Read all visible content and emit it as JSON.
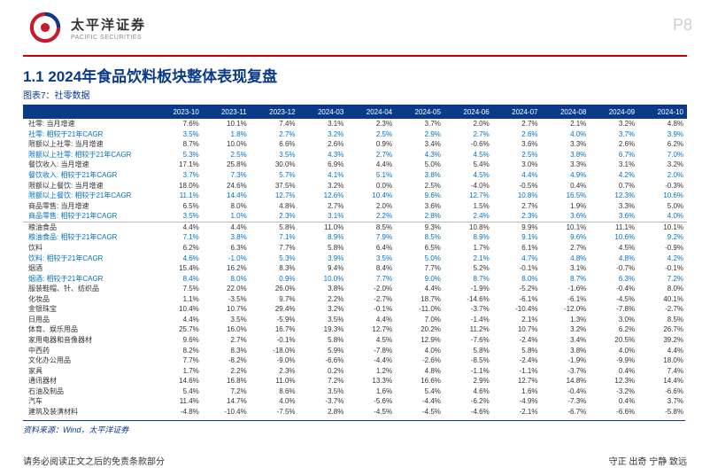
{
  "page_number": "P8",
  "brand": {
    "cn": "太平洋证券",
    "en": "PACIFIC SECURITIES"
  },
  "title": "1.1 2024年食品饮料板块整体表现复盘",
  "subtitle": "图表7：社零数据",
  "columns": [
    "",
    "2023-10",
    "2023-11",
    "2023-12",
    "2024-03",
    "2024-04",
    "2024-05",
    "2024-06",
    "2024-07",
    "2024-08",
    "2024-09",
    "2024-10"
  ],
  "sections": [
    {
      "rows": [
        {
          "label": "社零: 当月增速",
          "vals": [
            "7.6%",
            "10.1%",
            "7.4%",
            "3.1%",
            "2.3%",
            "3.7%",
            "2.0%",
            "2.7%",
            "2.1%",
            "3.2%",
            "4.8%"
          ],
          "blue": false
        },
        {
          "label": "社零: 相较于21年CAGR",
          "vals": [
            "3.5%",
            "1.8%",
            "2.7%",
            "3.2%",
            "2.5%",
            "2.9%",
            "2.7%",
            "2.6%",
            "4.0%",
            "3.7%",
            "3.9%"
          ],
          "blue": true
        },
        {
          "label": "限额以上社零: 当月增速",
          "vals": [
            "8.7%",
            "10.0%",
            "6.6%",
            "2.6%",
            "0.9%",
            "3.4%",
            "-0.6%",
            "3.6%",
            "3.3%",
            "2.6%",
            "6.2%"
          ],
          "blue": false
        },
        {
          "label": "限额以上社零: 相较于21年CAGR",
          "vals": [
            "5.3%",
            "2.5%",
            "3.5%",
            "4.3%",
            "2.7%",
            "4.3%",
            "4.5%",
            "2.5%",
            "3.8%",
            "6.7%",
            "7.0%"
          ],
          "blue": true
        },
        {
          "label": "餐饮收入: 当月增速",
          "vals": [
            "17.1%",
            "25.8%",
            "30.0%",
            "6.9%",
            "4.4%",
            "5.0%",
            "5.4%",
            "3.0%",
            "3.3%",
            "3.1%",
            "3.2%"
          ],
          "blue": false
        },
        {
          "label": "餐饮收入: 相较于21年CAGR",
          "vals": [
            "3.7%",
            "7.3%",
            "5.7%",
            "4.1%",
            "5.1%",
            "3.8%",
            "4.5%",
            "4.4%",
            "4.9%",
            "4.2%",
            "2.0%"
          ],
          "blue": true
        },
        {
          "label": "限额以上餐饮: 当月增速",
          "vals": [
            "18.0%",
            "24.6%",
            "37.5%",
            "3.2%",
            "0.0%",
            "2.5%",
            "-4.0%",
            "-0.5%",
            "0.4%",
            "0.7%",
            "-0.3%"
          ],
          "blue": false
        },
        {
          "label": "限额以上餐饮: 相较于21年CAGR",
          "vals": [
            "11.1%",
            "14.4%",
            "12.7%",
            "12.6%",
            "10.4%",
            "9.6%",
            "12.7%",
            "10.8%",
            "16.5%",
            "12.3%",
            "10.6%"
          ],
          "blue": true
        },
        {
          "label": "商品零售: 当月增速",
          "vals": [
            "6.5%",
            "8.0%",
            "4.8%",
            "2.7%",
            "2.0%",
            "3.6%",
            "1.5%",
            "2.7%",
            "1.9%",
            "3.3%",
            "5.0%"
          ],
          "blue": false
        },
        {
          "label": "商品零售: 相较于21年CAGR",
          "vals": [
            "3.5%",
            "1.0%",
            "2.3%",
            "3.1%",
            "2.2%",
            "2.8%",
            "2.4%",
            "2.3%",
            "3.6%",
            "3.6%",
            "4.0%"
          ],
          "blue": true
        }
      ]
    },
    {
      "rows": [
        {
          "label": "粮油食品",
          "vals": [
            "4.4%",
            "4.4%",
            "5.8%",
            "11.0%",
            "8.5%",
            "9.3%",
            "10.8%",
            "9.9%",
            "10.1%",
            "11.1%",
            "10.1%"
          ],
          "blue": false
        },
        {
          "label": "粮油食品: 相较于21年CAGR",
          "vals": [
            "7.1%",
            "3.8%",
            "7.1%",
            "8.9%",
            "7.9%",
            "8.5%",
            "8.9%",
            "9.1%",
            "9.6%",
            "10.6%",
            "9.2%"
          ],
          "blue": true
        },
        {
          "label": "饮料",
          "vals": [
            "6.2%",
            "6.3%",
            "7.7%",
            "5.8%",
            "6.4%",
            "6.5%",
            "1.7%",
            "6.1%",
            "2.7%",
            "4.5%",
            "-0.9%"
          ],
          "blue": false
        },
        {
          "label": "饮料: 相较于21年CAGR",
          "vals": [
            "4.6%",
            "-1.0%",
            "5.3%",
            "3.9%",
            "3.5%",
            "5.0%",
            "2.1%",
            "4.7%",
            "4.8%",
            "4.8%",
            "4.2%"
          ],
          "blue": true
        },
        {
          "label": "烟酒",
          "vals": [
            "15.4%",
            "16.2%",
            "8.3%",
            "9.4%",
            "8.4%",
            "7.7%",
            "5.2%",
            "-0.1%",
            "3.1%",
            "-0.7%",
            "-0.1%"
          ],
          "blue": false
        },
        {
          "label": "烟酒: 相较于21年CAGR",
          "vals": [
            "8.4%",
            "8.0%",
            "0.9%",
            "10.0%",
            "7.7%",
            "9.0%",
            "8.7%",
            "8.0%",
            "8.7%",
            "6.3%",
            "7.2%"
          ],
          "blue": true
        },
        {
          "label": "服装鞋帽、针、纺织品",
          "vals": [
            "7.5%",
            "22.0%",
            "26.0%",
            "3.8%",
            "-2.0%",
            "4.4%",
            "-1.9%",
            "-5.2%",
            "-1.6%",
            "-0.4%",
            "8.0%"
          ],
          "blue": false
        },
        {
          "label": "化妆品",
          "vals": [
            "1.1%",
            "-3.5%",
            "9.7%",
            "2.2%",
            "-2.7%",
            "18.7%",
            "-14.6%",
            "-6.1%",
            "-6.1%",
            "-4.5%",
            "40.1%"
          ],
          "blue": false
        },
        {
          "label": "金银珠宝",
          "vals": [
            "10.4%",
            "10.7%",
            "29.4%",
            "3.2%",
            "-0.1%",
            "-11.0%",
            "-3.7%",
            "-10.4%",
            "-12.0%",
            "-7.8%",
            "-2.7%"
          ],
          "blue": false
        },
        {
          "label": "日用品",
          "vals": [
            "4.4%",
            "3.5%",
            "-5.9%",
            "3.5%",
            "4.4%",
            "7.0%",
            "-1.4%",
            "2.1%",
            "1.3%",
            "3.0%",
            "8.5%"
          ],
          "blue": false
        },
        {
          "label": "体育、娱乐用品",
          "vals": [
            "25.7%",
            "16.0%",
            "16.7%",
            "19.3%",
            "12.7%",
            "20.2%",
            "11.2%",
            "10.7%",
            "3.2%",
            "6.2%",
            "26.7%"
          ],
          "blue": false
        },
        {
          "label": "家用电器和音像器材",
          "vals": [
            "9.6%",
            "2.7%",
            "-0.1%",
            "5.8%",
            "4.5%",
            "12.9%",
            "-7.6%",
            "-2.4%",
            "3.4%",
            "20.5%",
            "39.2%"
          ],
          "blue": false
        },
        {
          "label": "中西药",
          "vals": [
            "8.2%",
            "8.3%",
            "-18.0%",
            "5.9%",
            "-7.8%",
            "4.0%",
            "5.8%",
            "5.8%",
            "3.8%",
            "4.0%",
            "4.4%"
          ],
          "blue": false
        },
        {
          "label": "文化办公用品",
          "vals": [
            "7.7%",
            "-8.2%",
            "-9.0%",
            "-6.6%",
            "-4.4%",
            "-2.6%",
            "-8.5%",
            "-2.4%",
            "-1.9%",
            "-9.9%",
            "18.0%"
          ],
          "blue": false
        },
        {
          "label": "家具",
          "vals": [
            "1.7%",
            "2.2%",
            "2.3%",
            "0.2%",
            "1.2%",
            "4.8%",
            "-1.1%",
            "-1.1%",
            "-3.7%",
            "0.4%",
            "7.4%"
          ],
          "blue": false
        },
        {
          "label": "通讯器材",
          "vals": [
            "14.6%",
            "16.8%",
            "11.0%",
            "7.2%",
            "13.3%",
            "16.6%",
            "2.9%",
            "12.7%",
            "14.8%",
            "12.3%",
            "14.4%"
          ],
          "blue": false
        },
        {
          "label": "石油及制品",
          "vals": [
            "5.4%",
            "7.2%",
            "8.6%",
            "3.5%",
            "1.6%",
            "5.4%",
            "4.6%",
            "1.6%",
            "-0.4%",
            "-3.2%",
            "-6.6%"
          ],
          "blue": false
        },
        {
          "label": "汽车",
          "vals": [
            "11.4%",
            "14.7%",
            "4.0%",
            "-3.7%",
            "-5.6%",
            "-4.4%",
            "-6.2%",
            "-4.9%",
            "-7.3%",
            "0.4%",
            "3.7%"
          ],
          "blue": false
        },
        {
          "label": "建筑及装潢材料",
          "vals": [
            "-4.8%",
            "-10.4%",
            "-7.5%",
            "2.8%",
            "-4.5%",
            "-4.5%",
            "-4.6%",
            "-2.1%",
            "-6.7%",
            "-6.6%",
            "-5.8%"
          ],
          "blue": false
        }
      ]
    }
  ],
  "source": "资料来源：Wind，太平洋证券",
  "footer": {
    "left": "请务必阅读正文之后的免责条款部分",
    "right": "守正 出奇 宁静 致远"
  },
  "colors": {
    "header_bg": "#0a3a8a",
    "blue_text": "#0072c6",
    "red_rule": "#c00000"
  }
}
